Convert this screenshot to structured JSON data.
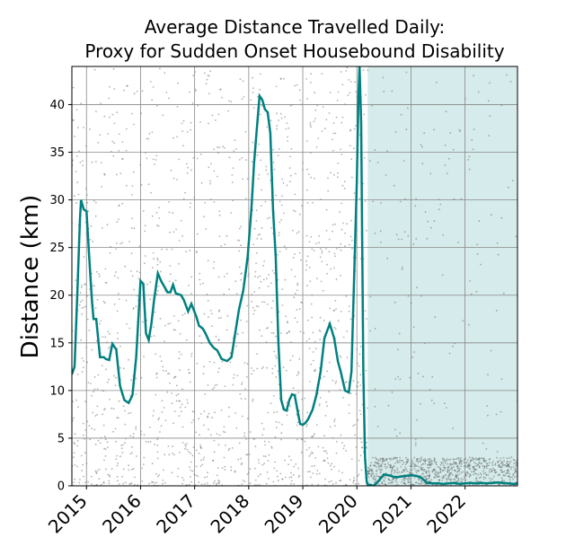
{
  "chart_data": {
    "type": "line",
    "title_line1": "Average Distance Travelled Daily:",
    "title_line2": "Proxy for Sudden Onset Housebound Disability",
    "ylabel": "Distance (km)",
    "xlabel": "",
    "xlim": [
      2014.73,
      2022.97
    ],
    "ylim": [
      0,
      44
    ],
    "grid": true,
    "yticks": [
      0,
      5,
      10,
      15,
      20,
      25,
      30,
      35,
      40
    ],
    "xticks": [
      "2015",
      "2016",
      "2017",
      "2018",
      "2019",
      "2020",
      "2021",
      "2022"
    ],
    "xtick_values": [
      2015,
      2016,
      2017,
      2018,
      2019,
      2020,
      2021,
      2022
    ],
    "line_color": "#008080",
    "shade_color": "#d6ebeb",
    "shaded_region": [
      2020.2,
      2022.97
    ],
    "series": [
      {
        "x": [
          2014.73,
          2014.78,
          2014.83,
          2014.88,
          2014.9,
          2014.95,
          2015.0,
          2015.05,
          2015.1,
          2015.13,
          2015.18,
          2015.25,
          2015.32,
          2015.36,
          2015.42,
          2015.48,
          2015.55,
          2015.62,
          2015.7,
          2015.78,
          2015.85,
          2015.92,
          2016.0,
          2016.05,
          2016.1,
          2016.15,
          2016.2,
          2016.25,
          2016.32,
          2016.38,
          2016.45,
          2016.5,
          2016.55,
          2016.6,
          2016.65,
          2016.7,
          2016.75,
          2016.8,
          2016.88,
          2016.94,
          2016.98,
          2017.03,
          2017.08,
          2017.15,
          2017.2,
          2017.28,
          2017.35,
          2017.42,
          2017.5,
          2017.6,
          2017.68,
          2017.75,
          2017.82,
          2017.9,
          2017.98,
          2018.05,
          2018.1,
          2018.15,
          2018.2,
          2018.25,
          2018.3,
          2018.35,
          2018.4,
          2018.45,
          2018.5,
          2018.55,
          2018.6,
          2018.65,
          2018.7,
          2018.75,
          2018.8,
          2018.85,
          2018.9,
          2018.95,
          2019.0,
          2019.05,
          2019.1,
          2019.18,
          2019.25,
          2019.33,
          2019.4,
          2019.5,
          2019.58,
          2019.65,
          2019.7,
          2019.78,
          2019.85,
          2019.9,
          2019.95,
          2020.0,
          2020.03,
          2020.05,
          2020.08,
          2020.1,
          2020.12,
          2020.15,
          2020.18,
          2020.2,
          2020.25,
          2020.3,
          2020.35,
          2020.4,
          2020.5,
          2020.6,
          2020.7,
          2020.8,
          2020.9,
          2021.0,
          2021.1,
          2021.2,
          2021.3,
          2021.4,
          2021.5,
          2021.6,
          2021.7,
          2021.8,
          2021.9,
          2022.0,
          2022.1,
          2022.2,
          2022.3,
          2022.4,
          2022.5,
          2022.6,
          2022.7,
          2022.8,
          2022.9,
          2022.97
        ],
        "values": [
          11.7,
          12.5,
          20.0,
          28.0,
          30.0,
          29.0,
          28.8,
          24.0,
          19.5,
          17.5,
          17.5,
          13.5,
          13.5,
          13.3,
          13.2,
          14.9,
          14.3,
          10.5,
          9.0,
          8.7,
          9.5,
          13.5,
          21.5,
          21.2,
          16.0,
          15.3,
          17.0,
          19.5,
          22.3,
          21.5,
          20.8,
          20.3,
          20.3,
          21.1,
          20.2,
          20.1,
          20.0,
          19.5,
          18.3,
          19.1,
          18.5,
          17.8,
          16.8,
          16.5,
          16.0,
          15.0,
          14.5,
          14.2,
          13.3,
          13.1,
          13.5,
          16.0,
          18.5,
          20.5,
          24.0,
          29.0,
          34.0,
          37.5,
          40.9,
          40.5,
          39.5,
          39.2,
          37.0,
          29.0,
          24.0,
          15.0,
          9.0,
          8.0,
          7.9,
          9.0,
          9.6,
          9.5,
          8.0,
          6.5,
          6.4,
          6.6,
          7.0,
          8.0,
          9.5,
          12.0,
          15.5,
          17.0,
          15.5,
          13.0,
          12.0,
          10.0,
          9.8,
          12.0,
          22.0,
          32.0,
          41.0,
          44.0,
          38.0,
          25.0,
          12.0,
          3.0,
          0.5,
          0.1,
          0.1,
          0.0,
          0.2,
          0.5,
          1.2,
          1.1,
          0.9,
          0.95,
          1.05,
          1.1,
          1.05,
          0.8,
          0.3,
          0.25,
          0.25,
          0.2,
          0.25,
          0.3,
          0.2,
          0.25,
          0.3,
          0.25,
          0.3,
          0.25,
          0.3,
          0.35,
          0.3,
          0.25,
          0.2,
          0.25
        ]
      }
    ]
  }
}
